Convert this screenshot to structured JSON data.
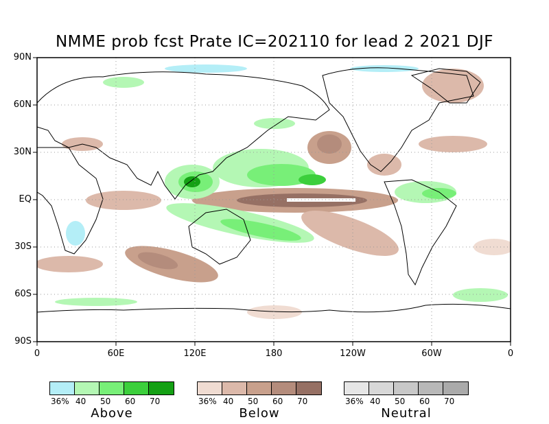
{
  "title": "NMME prob fcst Prate IC=202110 for lead 2 2021 DJF",
  "lat_labels": [
    "90N",
    "60N",
    "30N",
    "EQ",
    "30S",
    "60S",
    "90S"
  ],
  "lon_labels": [
    "0",
    "60E",
    "120E",
    "180",
    "120W",
    "60W",
    "0"
  ],
  "legends": [
    {
      "name": "Above",
      "ticks": [
        "36%",
        "40",
        "50",
        "60",
        "70"
      ],
      "colors": [
        "#b4eef7",
        "#b4f7b4",
        "#78ef78",
        "#3ccf3c",
        "#14a014"
      ]
    },
    {
      "name": "Below",
      "ticks": [
        "36%",
        "40",
        "50",
        "60",
        "70"
      ],
      "colors": [
        "#f0dcd2",
        "#dcb9aa",
        "#c8a08c",
        "#b48c7c",
        "#967064"
      ]
    },
    {
      "name": "Neutral",
      "ticks": [
        "36%",
        "40",
        "50",
        "60",
        "70"
      ],
      "colors": [
        "#e6e6e6",
        "#d8d8d8",
        "#c8c8c8",
        "#b8b8b8",
        "#aaaaaa"
      ]
    }
  ]
}
